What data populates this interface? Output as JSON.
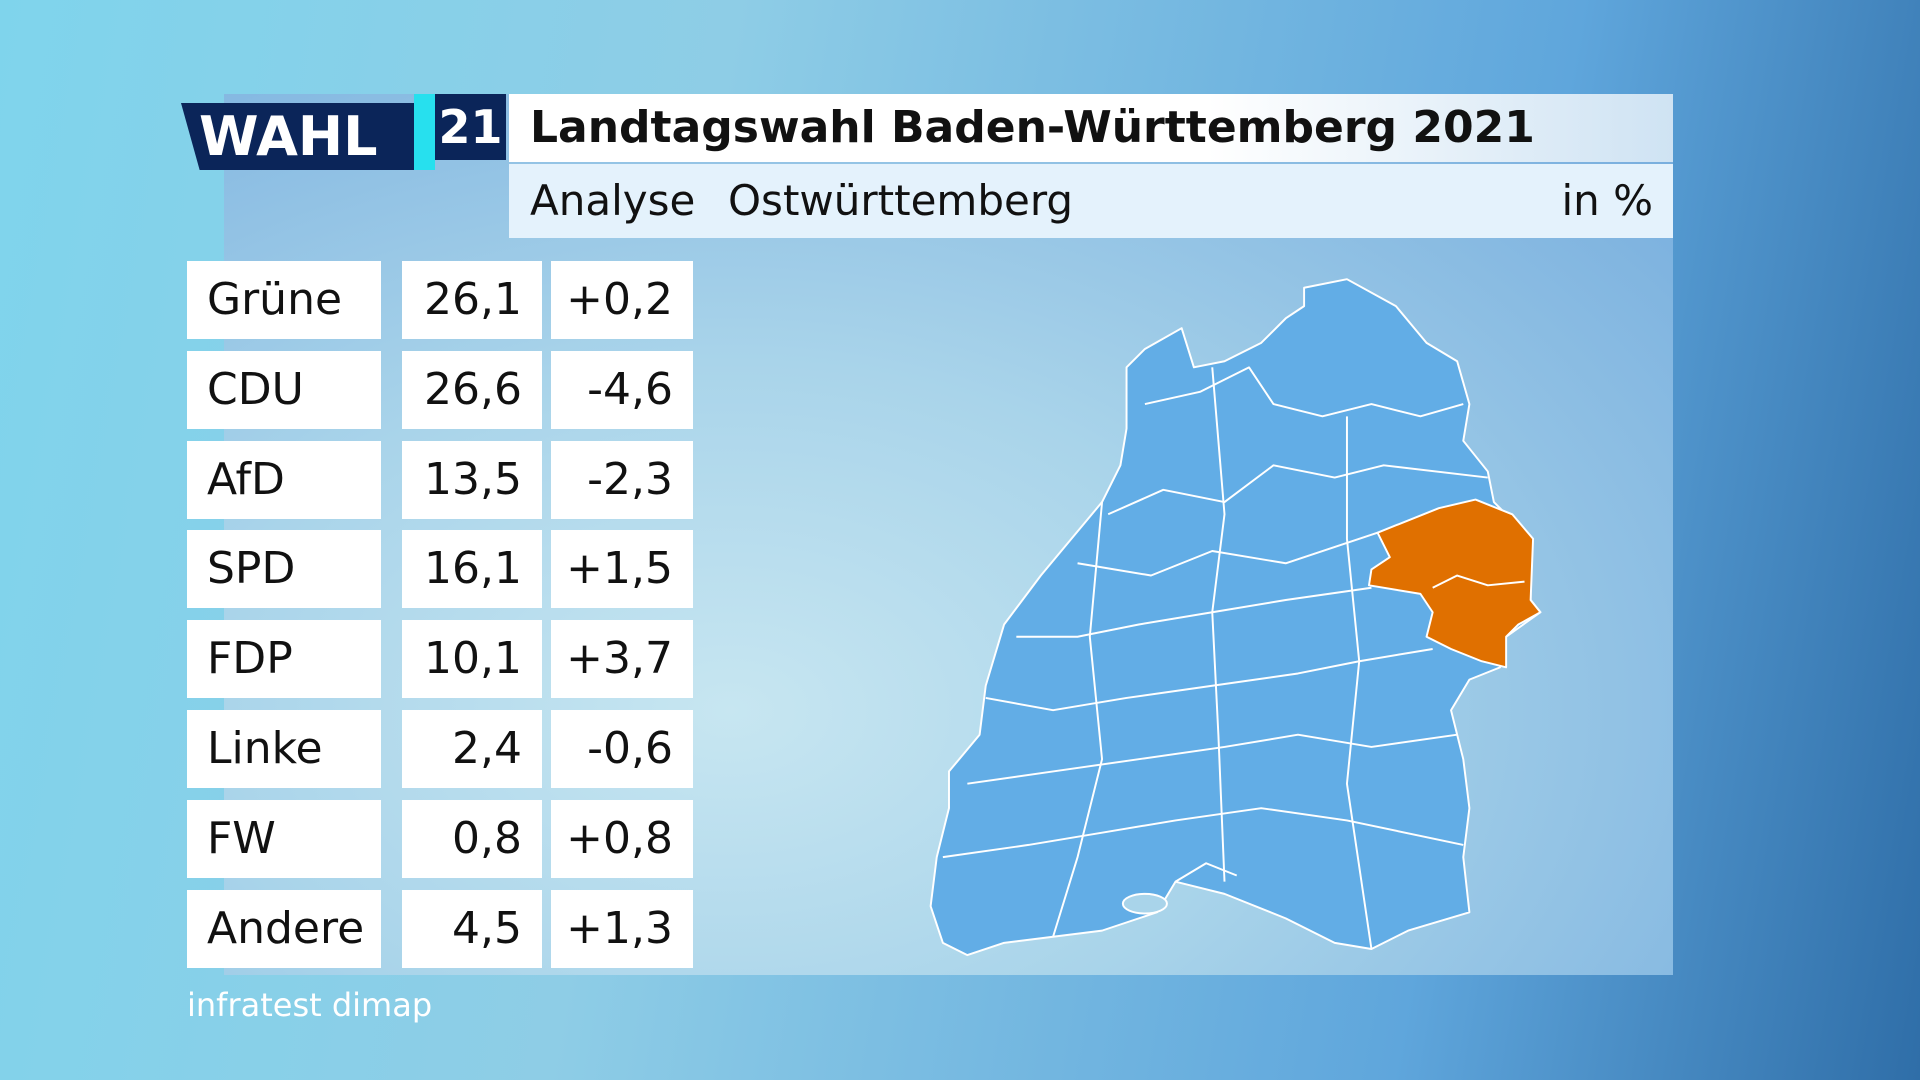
{
  "header": {
    "logo_text": "WAHL",
    "logo_number": "21",
    "title": "Landtagswahl Baden-Württemberg 2021",
    "subtitle_label": "Analyse",
    "subtitle_region": "Ostwürttemberg",
    "unit": "in %"
  },
  "table": {
    "rows": [
      [
        "Grüne",
        "26,1",
        "+0,2"
      ],
      [
        "CDU",
        "26,6",
        "-4,6"
      ],
      [
        "AfD",
        "13,5",
        "-2,3"
      ],
      [
        "SPD",
        "16,1",
        "+1,5"
      ],
      [
        "FDP",
        "10,1",
        "+3,7"
      ],
      [
        "Linke",
        "2,4",
        "-0,6"
      ],
      [
        "FW",
        "0,8",
        "+0,8"
      ],
      [
        "Andere",
        "4,5",
        "+1,3"
      ]
    ]
  },
  "footer": {
    "source": "infratest dimap"
  }
}
